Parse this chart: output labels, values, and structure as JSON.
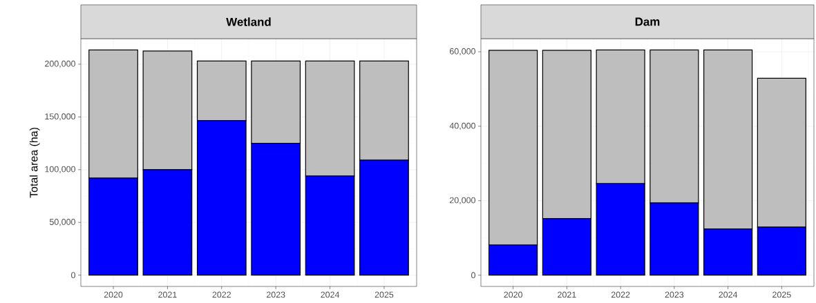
{
  "chart_data": [
    {
      "type": "bar",
      "title": "Wetland",
      "ylabel": "Total area (ha)",
      "stacked": true,
      "grid": true,
      "categories": [
        "2020",
        "2021",
        "2022",
        "2023",
        "2024",
        "2025"
      ],
      "series": [
        {
          "color": "#0000ff",
          "values": [
            92000,
            100000,
            146500,
            125000,
            94000,
            109000
          ]
        },
        {
          "color": "#bebebe",
          "values": [
            121500,
            112500,
            56500,
            78000,
            109000,
            94000
          ]
        }
      ],
      "ylim": [
        -10700,
        224200
      ],
      "yticks": [
        {
          "value": 0,
          "label": "0"
        },
        {
          "value": 50000,
          "label": "50,000"
        },
        {
          "value": 100000,
          "label": "100,000"
        },
        {
          "value": 150000,
          "label": "150,000"
        },
        {
          "value": 200000,
          "label": "200,000"
        }
      ]
    },
    {
      "type": "bar",
      "title": "Dam",
      "stacked": true,
      "grid": true,
      "categories": [
        "2020",
        "2021",
        "2022",
        "2023",
        "2024",
        "2025"
      ],
      "series": [
        {
          "color": "#0000ff",
          "values": [
            8100,
            15200,
            24600,
            19400,
            12400,
            12900
          ]
        },
        {
          "color": "#bebebe",
          "values": [
            52300,
            45200,
            35900,
            41100,
            48100,
            40000
          ]
        }
      ],
      "ylim": [
        -3025,
        63525
      ],
      "yticks": [
        {
          "value": 0,
          "label": "0"
        },
        {
          "value": 20000,
          "label": "20,000"
        },
        {
          "value": 40000,
          "label": "40,000"
        },
        {
          "value": 60000,
          "label": "60,000"
        }
      ]
    }
  ]
}
